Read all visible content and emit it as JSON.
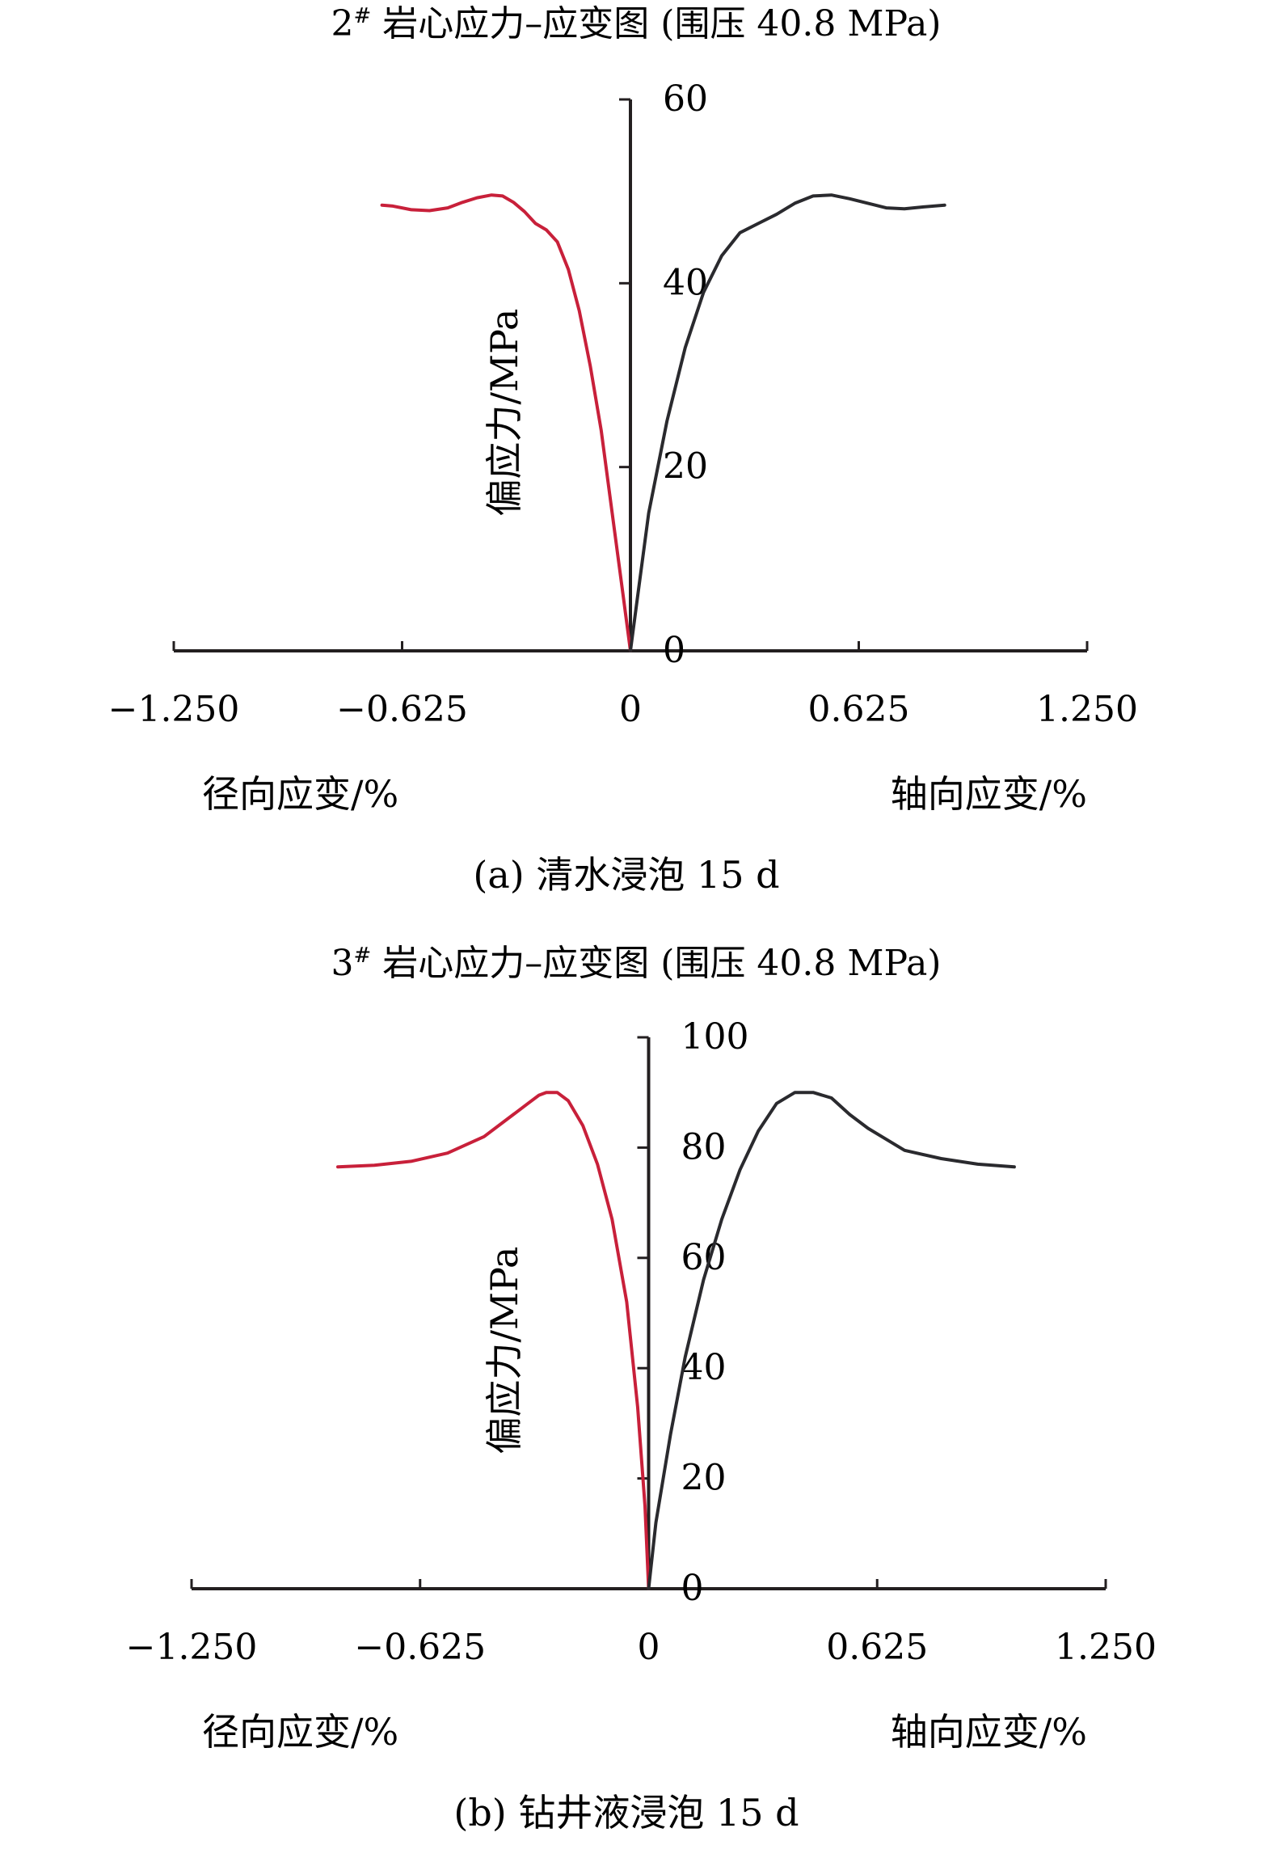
{
  "colors": {
    "radial": "#c8203a",
    "axial": "#2a2a2e",
    "axis": "#231f20"
  },
  "panels": [
    {
      "title_prefix": "2",
      "title_sup": "#",
      "title_rest": " 岩心应力–应变图 (围压 40.8 MPa)",
      "caption": "(a) 清水浸泡 15 d",
      "ylabel": "偏应力/MPa",
      "xlabel_left": "径向应变/%",
      "xlabel_right": "轴向应变/%",
      "x_tick_labels": [
        "−1.250",
        "−0.625",
        "0",
        "0.625",
        "1.250"
      ],
      "y_tick_labels": [
        "0",
        "20",
        "40",
        "60"
      ],
      "chart_data": {
        "type": "line",
        "xlim": [
          -1.25,
          1.25
        ],
        "ylim": [
          0,
          60
        ],
        "x_ticks": [
          -1.25,
          -0.625,
          0,
          0.625,
          1.25
        ],
        "y_ticks": [
          0,
          20,
          40,
          60
        ],
        "grid": false,
        "series": [
          {
            "x": [
              0,
              -0.02,
              -0.05,
              -0.08,
              -0.11,
              -0.14,
              -0.17,
              -0.2,
              -0.23,
              -0.26,
              -0.29,
              -0.32,
              -0.35,
              -0.38,
              -0.42,
              -0.46,
              -0.5,
              -0.55,
              -0.6,
              -0.65,
              -0.68
            ],
            "y": [
              0,
              6,
              15,
              24,
              31,
              37,
              41.5,
              44.5,
              45.8,
              46.5,
              47.8,
              48.8,
              49.5,
              49.6,
              49.3,
              48.8,
              48.2,
              47.9,
              48.0,
              48.4,
              48.5
            ]
          },
          {
            "x": [
              0,
              0.02,
              0.05,
              0.1,
              0.15,
              0.2,
              0.25,
              0.3,
              0.35,
              0.4,
              0.45,
              0.5,
              0.55,
              0.6,
              0.65,
              0.7,
              0.75,
              0.8,
              0.86
            ],
            "y": [
              0,
              6,
              15,
              25,
              33,
              39,
              43,
              45.5,
              46.5,
              47.5,
              48.7,
              49.5,
              49.6,
              49.2,
              48.7,
              48.2,
              48.1,
              48.3,
              48.5
            ]
          }
        ]
      }
    },
    {
      "title_prefix": "3",
      "title_sup": "#",
      "title_rest": " 岩心应力–应变图 (围压 40.8 MPa)",
      "caption": "(b) 钻井液浸泡 15 d",
      "ylabel": "偏应力/MPa",
      "xlabel_left": "径向应变/%",
      "xlabel_right": "轴向应变/%",
      "x_tick_labels": [
        "−1.250",
        "−0.625",
        "0",
        "0.625",
        "1.250"
      ],
      "y_tick_labels": [
        "0",
        "20",
        "40",
        "60",
        "80",
        "100"
      ],
      "chart_data": {
        "type": "line",
        "xlim": [
          -1.25,
          1.25
        ],
        "ylim": [
          0,
          100
        ],
        "x_ticks": [
          -1.25,
          -0.625,
          0,
          0.625,
          1.25
        ],
        "y_ticks": [
          0,
          20,
          40,
          60,
          80,
          100
        ],
        "grid": false,
        "series": [
          {
            "x": [
              0,
              -0.01,
              -0.03,
              -0.06,
              -0.1,
              -0.14,
              -0.18,
              -0.22,
              -0.25,
              -0.28,
              -0.3,
              -0.33,
              -0.38,
              -0.45,
              -0.55,
              -0.65,
              -0.75,
              -0.85
            ],
            "y": [
              0,
              15,
              33,
              52,
              67,
              77,
              84,
              88.5,
              90,
              90,
              89.5,
              88,
              85.5,
              82,
              79,
              77.5,
              76.8,
              76.5
            ]
          },
          {
            "x": [
              0,
              0.02,
              0.06,
              0.1,
              0.15,
              0.2,
              0.25,
              0.3,
              0.35,
              0.4,
              0.45,
              0.5,
              0.55,
              0.6,
              0.65,
              0.7,
              0.8,
              0.9,
              1.0
            ],
            "y": [
              0,
              12,
              28,
              42,
              56,
              67,
              76,
              83,
              88,
              90,
              90,
              89,
              86,
              83.5,
              81.5,
              79.5,
              78,
              77,
              76.5
            ]
          }
        ]
      }
    }
  ]
}
